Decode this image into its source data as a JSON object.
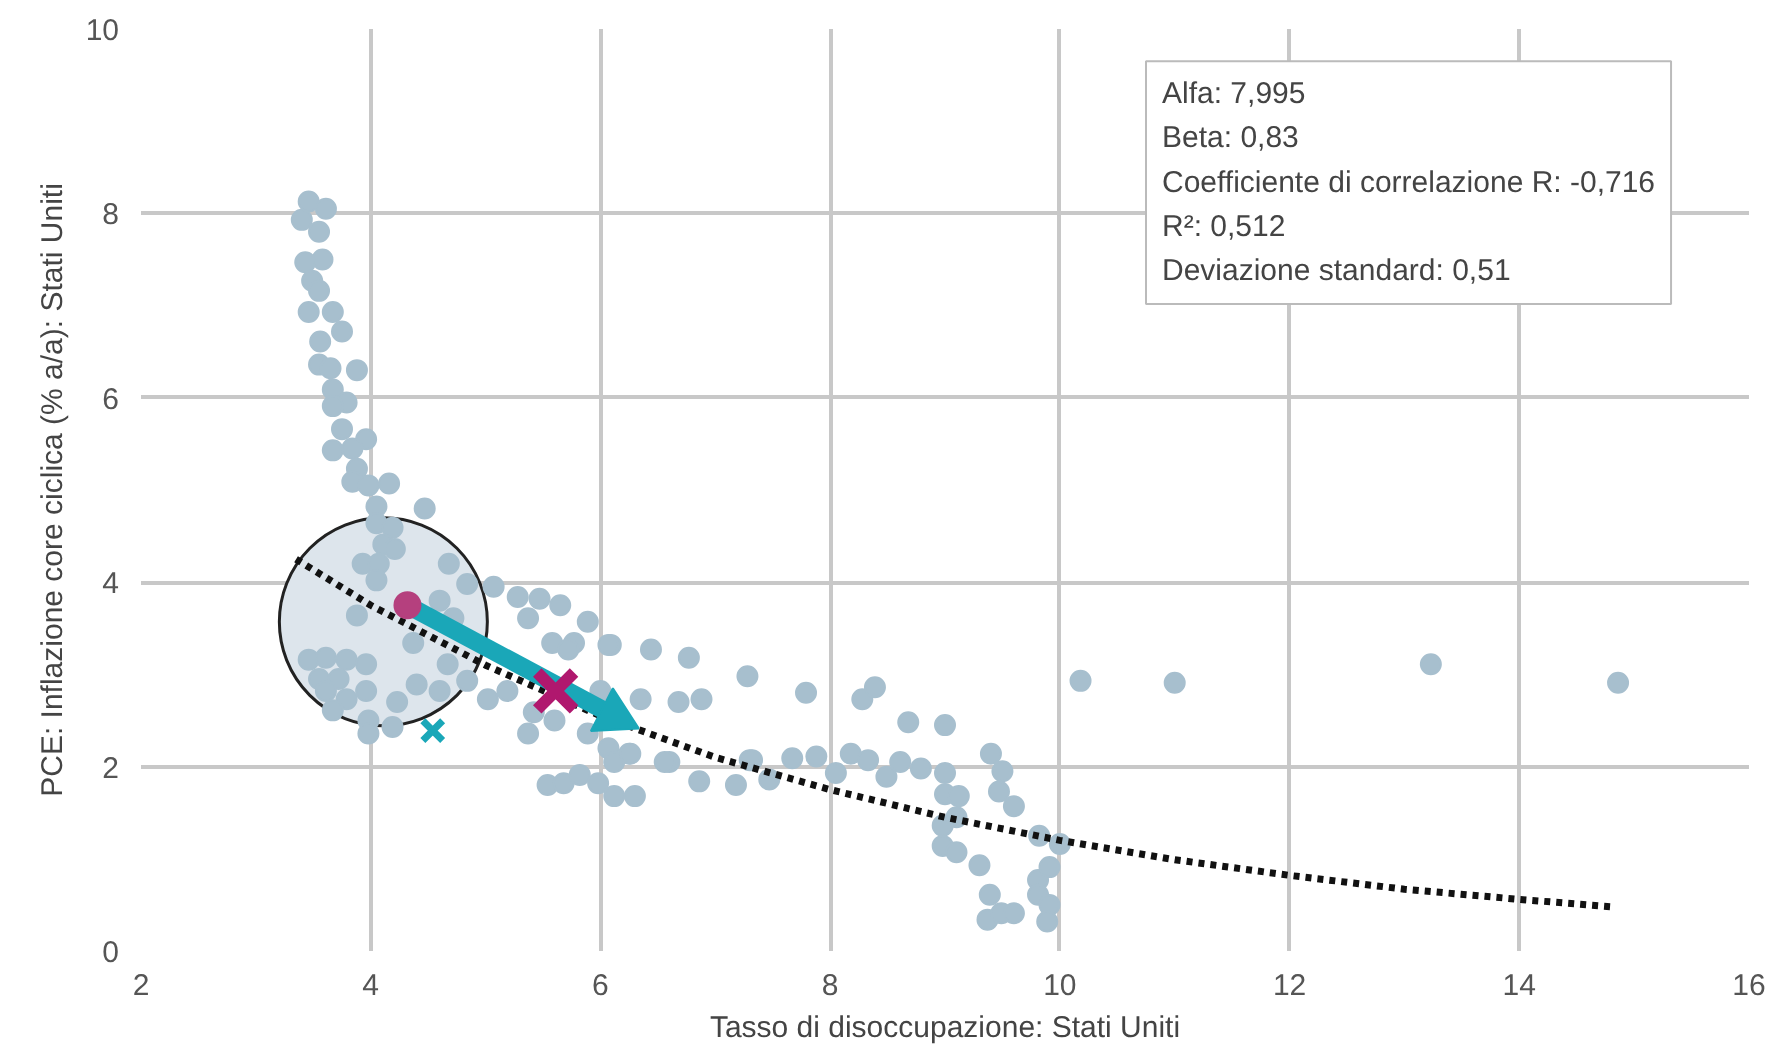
{
  "chart_data": {
    "type": "scatter",
    "xlabel": "Tasso di disoccupazione: Stati Uniti",
    "ylabel": "PCE: Inflazione core ciclica (% a/a): Stati Uniti",
    "xlim": [
      2,
      16
    ],
    "ylim": [
      0,
      10
    ],
    "xticks": [
      2,
      4,
      6,
      8,
      10,
      12,
      14,
      16
    ],
    "yticks": [
      0,
      2,
      4,
      6,
      8,
      10
    ],
    "grid": true,
    "annotations": [
      "Alfa: 7,995",
      "Beta: 0,83",
      "Coefficiente di correlazione R: -0,716",
      "R²: 0,512",
      "Deviazione standard: 0,51"
    ],
    "series": [
      {
        "type": "bubble",
        "color": "#dde5ec",
        "x": [
          4.11
        ],
        "values": [
          3.57
        ],
        "sizes": [
          1
        ]
      },
      {
        "marker": "circle",
        "color": "#a7bfce",
        "x": [
          3.46,
          3.61,
          3.4,
          3.55,
          3.58,
          3.43,
          3.49,
          3.55,
          3.46,
          3.67,
          3.75,
          3.56,
          3.55,
          3.65,
          3.88,
          3.67,
          3.79,
          3.67,
          3.75,
          3.96,
          3.67,
          3.84,
          3.88,
          3.84,
          3.98,
          4.16,
          4.05,
          4.47,
          4.05,
          4.19,
          4.11,
          3.93,
          4.07,
          4.21,
          4.68,
          4.05,
          4.84,
          5.07,
          5.28,
          5.47,
          5.65,
          5.89,
          6.09,
          5.37,
          5.58,
          5.77,
          4.72,
          4.6,
          3.88,
          4.37,
          3.46,
          3.61,
          3.79,
          3.96,
          3.55,
          3.72,
          3.61,
          3.79,
          3.96,
          3.67,
          3.98,
          4.19,
          3.98,
          4.23,
          4.4,
          4.67,
          4.84,
          4.6,
          5.02,
          5.19,
          5.42,
          5.6,
          5.37,
          5.89,
          6.07,
          6.25,
          6.35,
          6.0,
          5.72,
          5.54,
          5.68,
          5.82,
          5.98,
          6.12,
          6.3,
          6.12,
          6.26,
          6.44,
          6.77,
          6.68,
          6.88,
          7.28,
          6.07,
          6.6,
          6.86,
          7.18,
          7.32,
          7.79,
          8.28,
          8.39,
          8.68,
          9.0,
          10.18,
          6.56,
          7.3,
          7.47,
          7.67,
          7.88,
          8.05,
          8.18,
          8.33,
          8.49,
          8.61,
          8.79,
          9.0,
          9.0,
          9.12,
          9.1,
          8.98,
          8.98,
          9.1,
          9.3,
          9.4,
          9.5,
          9.47,
          9.6,
          9.82,
          10.0,
          11.0,
          13.23,
          14.86,
          9.39,
          9.37,
          9.49,
          9.6,
          9.81,
          9.91,
          9.81,
          9.91,
          9.89
        ],
        "values": [
          8.13,
          8.05,
          7.93,
          7.8,
          7.5,
          7.47,
          7.27,
          7.16,
          6.93,
          6.93,
          6.72,
          6.61,
          6.36,
          6.32,
          6.3,
          6.09,
          5.95,
          5.91,
          5.66,
          5.55,
          5.43,
          5.45,
          5.23,
          5.09,
          5.05,
          5.07,
          4.82,
          4.8,
          4.64,
          4.59,
          4.41,
          4.2,
          4.2,
          4.36,
          4.2,
          4.02,
          3.98,
          3.95,
          3.84,
          3.82,
          3.75,
          3.57,
          3.32,
          3.61,
          3.34,
          3.34,
          3.61,
          3.8,
          3.64,
          3.34,
          3.16,
          3.18,
          3.16,
          3.11,
          2.95,
          2.95,
          2.82,
          2.73,
          2.82,
          2.61,
          2.5,
          2.43,
          2.36,
          2.7,
          2.89,
          3.11,
          2.93,
          2.82,
          2.73,
          2.82,
          2.59,
          2.5,
          2.36,
          2.36,
          2.2,
          2.14,
          2.73,
          2.82,
          3.27,
          1.8,
          1.82,
          1.91,
          1.82,
          1.68,
          1.68,
          2.05,
          2.14,
          3.27,
          3.18,
          2.7,
          2.73,
          2.98,
          3.32,
          2.05,
          1.84,
          1.8,
          2.07,
          2.8,
          2.73,
          2.86,
          2.48,
          2.45,
          2.93,
          2.05,
          2.07,
          1.86,
          2.09,
          2.11,
          1.93,
          2.14,
          2.07,
          1.89,
          2.05,
          1.98,
          1.93,
          1.7,
          1.68,
          1.45,
          1.36,
          1.14,
          1.07,
          0.93,
          2.14,
          1.95,
          1.73,
          1.57,
          1.25,
          1.16,
          2.91,
          3.11,
          2.91,
          0.61,
          0.34,
          0.41,
          0.41,
          0.77,
          0.91,
          0.61,
          0.5,
          0.32
        ]
      },
      {
        "type": "line",
        "line_style": "dotted",
        "color": "#111111",
        "x": [
          3.35,
          4,
          5,
          6,
          7,
          8,
          9,
          10,
          11,
          12,
          13,
          14,
          14.8
        ],
        "values": [
          4.25,
          3.75,
          3.1,
          2.55,
          2.1,
          1.75,
          1.45,
          1.2,
          0.99,
          0.82,
          0.67,
          0.56,
          0.48
        ]
      },
      {
        "type": "line",
        "marker": "triangle",
        "color": "#1aa7b8",
        "x": [
          4.32,
          6.12
        ],
        "values": [
          3.75,
          2.55
        ]
      },
      {
        "marker": "circle",
        "color": "#b5407e",
        "x": [
          4.32
        ],
        "values": [
          3.75
        ]
      },
      {
        "marker": "cross",
        "color": "#b0186e",
        "x": [
          5.61
        ],
        "values": [
          2.82
        ]
      },
      {
        "marker": "cross",
        "color": "#1aa7b8",
        "x": [
          4.54
        ],
        "values": [
          2.39
        ]
      }
    ]
  }
}
